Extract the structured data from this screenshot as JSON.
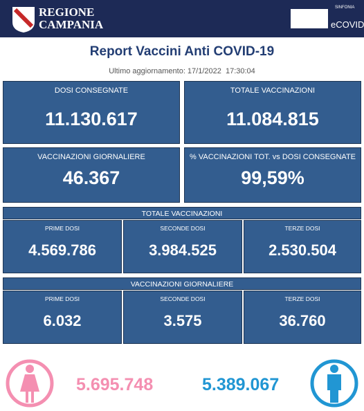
{
  "header": {
    "logo": [
      "REGIONE",
      "CAMPANIA"
    ],
    "partner": {
      "small": "SINFONIA",
      "name": "eCOVID"
    }
  },
  "title": "Report Vaccini Anti COVID-19",
  "subtitle": "Ultimo aggiornamento: 17/1/2022  17:30:04",
  "cards": [
    {
      "label": "DOSI  CONSEGNATE",
      "value": "11.130.617"
    },
    {
      "label": "TOTALE VACCINAZIONI",
      "value": "11.084.815"
    },
    {
      "label": "VACCINAZIONI GIORNALIERE",
      "value": "46.367"
    },
    {
      "label": "% VACCINAZIONI TOT. vs DOSI CONSEGNATE",
      "value": "99,59%"
    }
  ],
  "sections": [
    {
      "title": "TOTALE VACCINAZIONI",
      "cells": [
        {
          "label": "PRIME DOSI",
          "value": "4.569.786"
        },
        {
          "label": "SECONDE DOSI",
          "value": "3.984.525"
        },
        {
          "label": "TERZE DOSI",
          "value": "2.530.504"
        }
      ]
    },
    {
      "title": "VACCINAZIONI GIORNALIERE",
      "cells": [
        {
          "label": "PRIME DOSI",
          "value": "6.032"
        },
        {
          "label": "SECONDE DOSI",
          "value": "3.575"
        },
        {
          "label": "TERZE DOSI",
          "value": "36.760"
        }
      ]
    }
  ],
  "gender": {
    "female": "5.695.748",
    "male": "5.389.067"
  }
}
